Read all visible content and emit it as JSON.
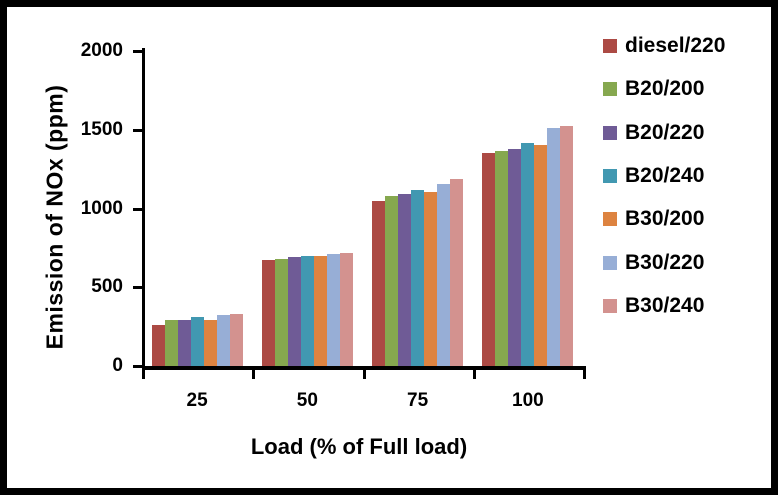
{
  "window": {
    "background_color": "#ffffff",
    "frame_border_color": "#000000",
    "text_color": "#000000"
  },
  "chart_data": {
    "type": "bar",
    "title": "",
    "xlabel": "Load (% of Full load)",
    "ylabel": "Emission of NOx (ppm)",
    "categories": [
      "25",
      "50",
      "75",
      "100"
    ],
    "ylim": [
      0,
      2000
    ],
    "yticks": [
      0,
      500,
      1000,
      1500,
      2000
    ],
    "grid": false,
    "legend_position": "right",
    "series": [
      {
        "name": "diesel/220",
        "color": "#AC4A44",
        "values": [
          260,
          670,
          1050,
          1355
        ]
      },
      {
        "name": "B20/200",
        "color": "#86A84F",
        "values": [
          290,
          680,
          1080,
          1365
        ]
      },
      {
        "name": "B20/220",
        "color": "#6F5B96",
        "values": [
          295,
          690,
          1095,
          1375
        ]
      },
      {
        "name": "B20/240",
        "color": "#4198B1",
        "values": [
          310,
          700,
          1115,
          1415
        ]
      },
      {
        "name": "B30/200",
        "color": "#DD8340",
        "values": [
          290,
          700,
          1105,
          1405
        ]
      },
      {
        "name": "B30/220",
        "color": "#97AED6",
        "values": [
          325,
          710,
          1155,
          1510
        ]
      },
      {
        "name": "B30/240",
        "color": "#D3928F",
        "values": [
          330,
          720,
          1190,
          1525
        ]
      }
    ]
  }
}
